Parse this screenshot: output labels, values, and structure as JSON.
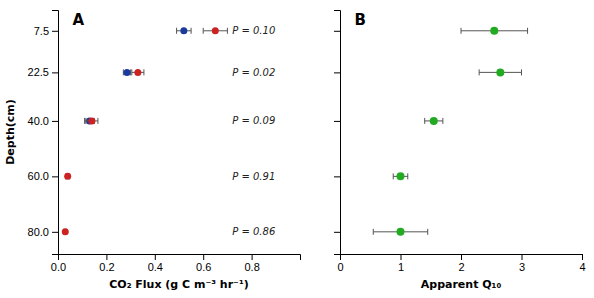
{
  "chart_data": [
    {
      "type": "scatter",
      "title": "A",
      "xlabel": "CO₂ Flux (g C m⁻³ hr⁻¹)",
      "ylabel": "Depth(cm)",
      "y": [
        7.5,
        22.5,
        40.0,
        60.0,
        80.0
      ],
      "series": [
        {
          "color": "#1a3a9e",
          "values": [
            0.52,
            0.285,
            0.13,
            null,
            null
          ],
          "error": [
            0.03,
            0.015,
            0.02,
            null,
            null
          ]
        },
        {
          "color": "#cc2222",
          "values": [
            0.65,
            0.33,
            0.14,
            0.04,
            0.03
          ],
          "error": [
            0.05,
            0.025,
            0.025,
            0.008,
            0.005
          ]
        }
      ],
      "annotations": [
        "P = 0.10",
        "P = 0.02",
        "P = 0.09",
        "P = 0.91",
        "P = 0.86"
      ],
      "xlim": [
        0.0,
        1.0
      ],
      "xticks": [
        {
          "value": 0.0,
          "label": "0.0"
        },
        0.2,
        0.4,
        0.6,
        0.8
      ],
      "ylim": [
        88,
        0
      ],
      "yticks": [
        7.5,
        22.5,
        {
          "value": 40.0,
          "label": "40.0"
        },
        {
          "value": 60.0,
          "label": "60.0"
        },
        {
          "value": 80.0,
          "label": "80.0"
        }
      ],
      "grid": false
    },
    {
      "type": "scatter",
      "title": "B",
      "xlabel": "Apparent Q₁₀",
      "y": [
        7.5,
        22.5,
        40.0,
        60.0,
        80.0
      ],
      "series": [
        {
          "color": "#22aa22",
          "values": [
            2.55,
            2.65,
            1.55,
            1.0,
            1.0
          ],
          "error": [
            0.55,
            0.35,
            0.15,
            0.12,
            0.45
          ]
        }
      ],
      "xlim": [
        0,
        4
      ],
      "xticks": [
        0,
        1,
        2,
        3,
        4
      ],
      "ylim": [
        88,
        0
      ],
      "yticks": [
        7.5,
        22.5,
        40,
        60,
        80
      ],
      "tick_labels": "x",
      "grid": false
    }
  ]
}
